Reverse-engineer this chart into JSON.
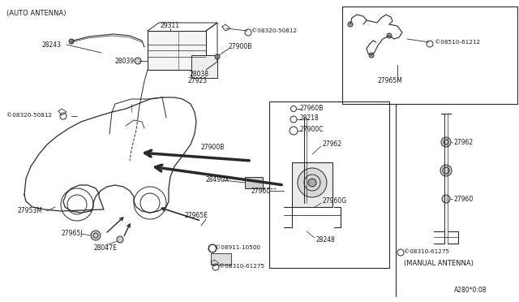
{
  "bg_color": "#ffffff",
  "line_color": "#2a2a2a",
  "text_color": "#1a1a1a",
  "fig_width": 6.4,
  "fig_height": 3.72,
  "dpi": 100,
  "labels": {
    "auto_antenna": "(AUTO ANTENNA)",
    "manual_antenna": "(MANUAL ANTENNA)",
    "part_number": "A280*0:08",
    "29311": "29311",
    "28243": "28243",
    "28039": "28039",
    "28038": "28038",
    "27900B_top": "27900B",
    "27900B_mid": "27900B",
    "27923": "27923",
    "08320_top": "©08320-50812",
    "08320_left": "©08320-50812",
    "27960B": "27960B",
    "28218": "28218",
    "27900C": "27900C",
    "27962_mid": "27962",
    "27962_right": "27962",
    "27960_mid": "27960",
    "27960_right": "27960",
    "27960G": "27960G",
    "28490X": "28490X",
    "27965E": "27965E",
    "27953M": "27953M",
    "27965J": "27965J",
    "28047E": "28047E",
    "28248": "28248",
    "08891": "©08911-10500",
    "08310_mid": "©08310-61275",
    "08310_right": "©08310-61275",
    "27965M": "27965M",
    "08510": "©08510-61212"
  }
}
